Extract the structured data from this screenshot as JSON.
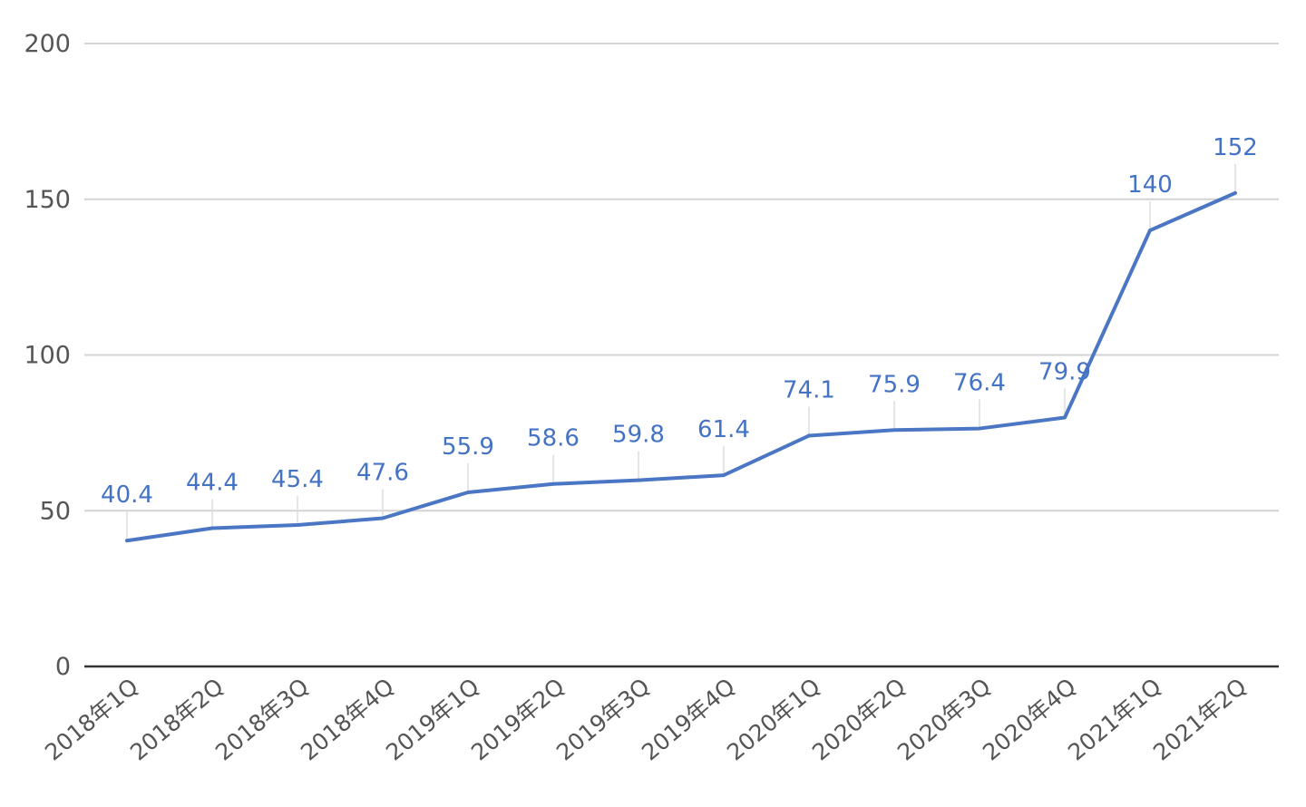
{
  "chart_data": {
    "type": "line",
    "title": "",
    "xlabel": "",
    "ylabel": "",
    "categories": [
      "2018年1Q",
      "2018年2Q",
      "2018年3Q",
      "2018年4Q",
      "2019年1Q",
      "2019年2Q",
      "2019年3Q",
      "2019年4Q",
      "2020年1Q",
      "2020年2Q",
      "2020年3Q",
      "2020年4Q",
      "2021年1Q",
      "2021年2Q"
    ],
    "series": [
      {
        "values": [
          40.4,
          44.4,
          45.4,
          47.6,
          55.9,
          58.6,
          59.8,
          61.4,
          74.1,
          75.9,
          76.4,
          79.9,
          140,
          152
        ],
        "labels": [
          "40.4",
          "44.4",
          "45.4",
          "47.6",
          "55.9",
          "58.6",
          "59.8",
          "61.4",
          "74.1",
          "75.9",
          "76.4",
          "79.9",
          "140",
          "152"
        ],
        "color": "#4a76c4"
      }
    ],
    "ylim": [
      0,
      200
    ],
    "yticks": [
      "0",
      "50",
      "100",
      "150",
      "200"
    ],
    "grid": true,
    "legend": "none",
    "label_color": "#4472c4"
  }
}
